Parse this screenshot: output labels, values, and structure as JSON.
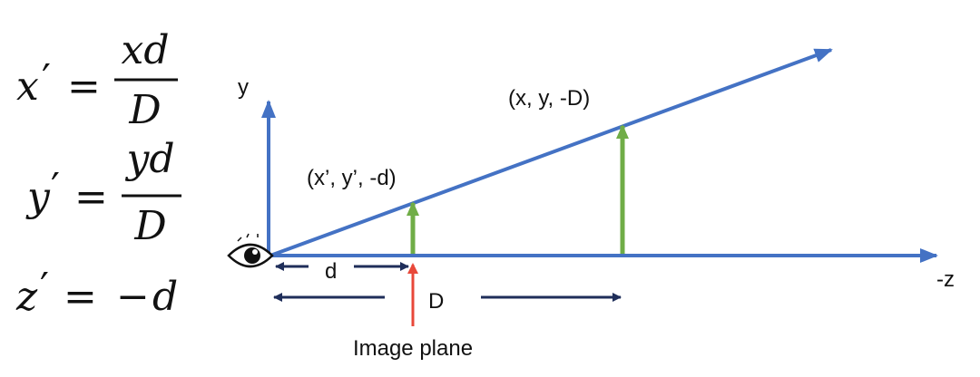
{
  "equations": {
    "x": {
      "lhs": "x",
      "prime": "′",
      "eq": "=",
      "num": "xd",
      "den": "D"
    },
    "y": {
      "lhs": "y",
      "prime": "′",
      "eq": "=",
      "num": "yd",
      "den": "D"
    },
    "z": {
      "lhs": "z",
      "prime": "′",
      "eq": "=",
      "rhs_sign": "−",
      "rhs": "d"
    }
  },
  "diagram": {
    "y_axis_label": "y",
    "z_axis_label": "-z",
    "far_point_label": "(x, y, -D)",
    "near_point_label": "(x’, y’, -d)",
    "d_label": "d",
    "D_label": "D",
    "image_plane_label": "Image plane",
    "eye_icon": "eye-icon"
  },
  "colors": {
    "axis": "#4472C4",
    "ray": "#4472C4",
    "height_arrows": "#70AD47",
    "dimension_arrows": "#1F2E5A",
    "image_plane_arrow": "#E8483A"
  }
}
